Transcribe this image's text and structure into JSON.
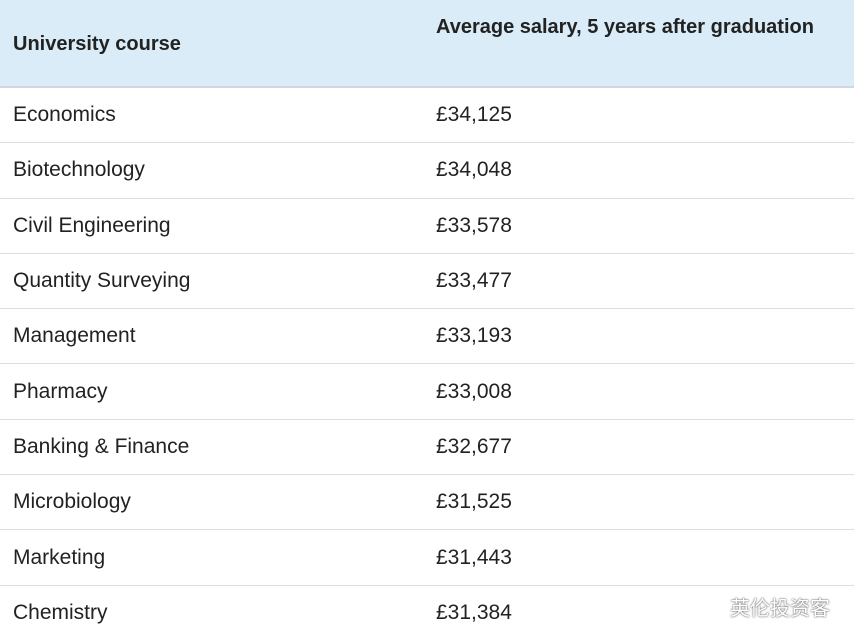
{
  "table": {
    "headers": {
      "course": "University course",
      "salary": "Average salary, 5 years after graduation"
    },
    "rows": [
      {
        "course": "Economics",
        "salary": "£34,125"
      },
      {
        "course": "Biotechnology",
        "salary": "£34,048"
      },
      {
        "course": "Civil Engineering",
        "salary": "£33,578"
      },
      {
        "course": "Quantity Surveying",
        "salary": "£33,477"
      },
      {
        "course": "Management",
        "salary": "£33,193"
      },
      {
        "course": "Pharmacy",
        "salary": "£33,008"
      },
      {
        "course": "Banking & Finance",
        "salary": "£32,677"
      },
      {
        "course": "Microbiology",
        "salary": "£31,525"
      },
      {
        "course": "Marketing",
        "salary": "£31,443"
      },
      {
        "course": "Chemistry",
        "salary": "£31,384"
      }
    ]
  },
  "watermark": {
    "text": "英伦投资客",
    "icon": "wechat-icon"
  }
}
